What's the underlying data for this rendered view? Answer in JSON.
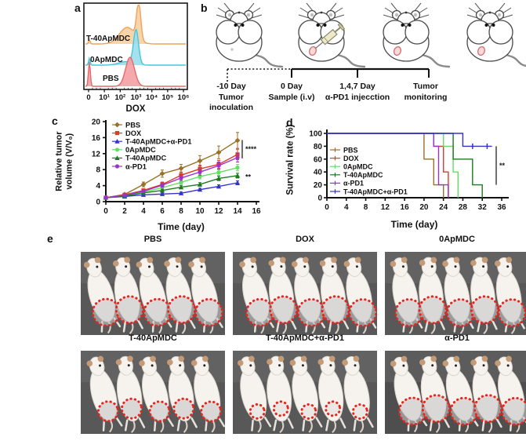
{
  "panel_a": {
    "label": "a"
  },
  "panel_b": {
    "label": "b",
    "mice": [
      {
        "mark": "dot",
        "syringe": false
      },
      {
        "mark": "tumor",
        "syringe": true
      },
      {
        "mark": "tumor",
        "syringe": false
      },
      {
        "mark": "tumor",
        "syringe": false
      }
    ],
    "timeline": [
      {
        "lines": [
          "-10 Day",
          "Tumor",
          "inoculation"
        ]
      },
      {
        "lines": [
          "0 Day",
          "Sample (i.v)"
        ]
      },
      {
        "lines": [
          "1,4,7 Day",
          "α-PD1 injecction"
        ]
      },
      {
        "lines": [
          "Tumor",
          "monitoring"
        ]
      }
    ]
  },
  "panel_c": {
    "label": "c"
  },
  "panel_d": {
    "label": "d"
  },
  "panel_e": {
    "label": "e",
    "groups": [
      {
        "name": "PBS",
        "tumor": "large"
      },
      {
        "name": "DOX",
        "tumor": "large"
      },
      {
        "name": "0ApMDC",
        "tumor": "large"
      },
      {
        "name": "T-40ApMDC",
        "tumor": "medium"
      },
      {
        "name": "T-40ApMDC+α-PD1",
        "tumor": "small"
      },
      {
        "name": "α-PD1",
        "tumor": "large"
      }
    ]
  },
  "chart_data": [
    {
      "id": "flow-histogram",
      "type": "area",
      "title": "",
      "xlabel": "DOX",
      "xticks": [
        "0",
        "10¹",
        "10²",
        "10³",
        "10⁴",
        "10⁵",
        "10⁶"
      ],
      "layout": "ridgeline, offset overlaid histograms, full box frame",
      "series": [
        {
          "name": "T-40ApMDC",
          "stroke": "#efa25a",
          "fill": "#f7cfa2",
          "peaks": [
            {
              "mu": 3.17,
              "sigma": 0.13,
              "amp": 1.0
            },
            {
              "mu": 2.45,
              "sigma": 0.5,
              "amp": 0.45
            },
            {
              "mu": 0.05,
              "sigma": 0.05,
              "amp": 0.12
            }
          ]
        },
        {
          "name": "0ApMDC",
          "stroke": "#46c5dc",
          "fill": "#9adeeb",
          "peaks": [
            {
              "mu": 3.0,
              "sigma": 0.16,
              "amp": 1.0
            },
            {
              "mu": 2.35,
              "sigma": 0.45,
              "amp": 0.1
            },
            {
              "mu": 0.05,
              "sigma": 0.05,
              "amp": 0.2
            }
          ]
        },
        {
          "name": "PBS",
          "stroke": "#e56a6a",
          "fill": "#f4a0a4",
          "peaks": [
            {
              "mu": 2.62,
              "sigma": 0.28,
              "amp": 1.0
            },
            {
              "mu": 0.05,
              "sigma": 0.06,
              "amp": 0.85
            }
          ]
        }
      ]
    },
    {
      "id": "tumor-volume",
      "type": "line",
      "title": "",
      "xlabel": "Time (day)",
      "ylabel": "Relative tumor volume (V/V₀)",
      "x": [
        0,
        2,
        4,
        6,
        8,
        10,
        12,
        14
      ],
      "xticks": [
        0,
        2,
        4,
        6,
        8,
        10,
        12,
        14,
        16
      ],
      "yticks": [
        0,
        4,
        8,
        12,
        16,
        20
      ],
      "xlim": [
        0,
        16
      ],
      "ylim": [
        0,
        20
      ],
      "legend_position": "top-left inside",
      "series": [
        {
          "name": "PBS",
          "color": "#9a7227",
          "marker": "diamond",
          "values": [
            1,
            1.8,
            4.3,
            7.0,
            8.3,
            10.2,
            12.3,
            15.3
          ],
          "err": [
            0.2,
            0.3,
            0.6,
            0.9,
            1.0,
            1.3,
            1.6,
            2.0
          ]
        },
        {
          "name": "DOX",
          "color": "#e0392e",
          "marker": "square",
          "values": [
            1,
            1.7,
            2.8,
            4.3,
            6.6,
            8.2,
            9.3,
            11.8
          ],
          "err": [
            0.2,
            0.3,
            0.4,
            0.6,
            0.8,
            0.9,
            1.0,
            1.3
          ]
        },
        {
          "name": "T-40ApMDC+α-PD1",
          "color": "#3333cb",
          "marker": "triangle",
          "values": [
            1,
            1.3,
            1.7,
            1.9,
            2.1,
            3.0,
            3.8,
            4.7
          ],
          "err": [
            0.1,
            0.15,
            0.2,
            0.25,
            0.3,
            0.35,
            0.4,
            0.5
          ]
        },
        {
          "name": "0ApMDC",
          "color": "#61e061",
          "marker": "circle",
          "values": [
            1,
            1.5,
            2.4,
            3.5,
            4.8,
            6.3,
            7.3,
            8.5
          ],
          "err": [
            0.15,
            0.2,
            0.3,
            0.4,
            0.5,
            0.6,
            0.7,
            0.8
          ]
        },
        {
          "name": "T-40ApMDC",
          "color": "#1f7a1f",
          "marker": "triangle",
          "values": [
            1,
            1.4,
            2.2,
            2.8,
            3.6,
            4.3,
            5.8,
            6.5
          ],
          "err": [
            0.12,
            0.18,
            0.25,
            0.3,
            0.4,
            0.45,
            0.55,
            0.6
          ]
        },
        {
          "name": "α-PD1",
          "color": "#9933cc",
          "marker": "circle",
          "values": [
            1,
            1.6,
            2.6,
            4.1,
            5.9,
            7.4,
            9.0,
            11.0
          ],
          "err": [
            0.15,
            0.25,
            0.35,
            0.5,
            0.6,
            0.8,
            0.9,
            1.1
          ]
        }
      ],
      "annotations": [
        {
          "text": "****",
          "y_top": 15.4,
          "y_bottom": 10.8
        },
        {
          "text": "**",
          "y": 6.2
        }
      ]
    },
    {
      "id": "survival",
      "type": "step",
      "title": "",
      "xlabel": "Time (day)",
      "ylabel": "Survival rate (%)",
      "xticks": [
        0,
        4,
        8,
        12,
        16,
        20,
        24,
        28,
        32,
        36
      ],
      "yticks": [
        0,
        20,
        40,
        60,
        80,
        100
      ],
      "xlim": [
        0,
        37
      ],
      "ylim": [
        0,
        100
      ],
      "legend_position": "lower-left inside",
      "series": [
        {
          "name": "PBS",
          "color": "#9a7227",
          "steps": [
            [
              0,
              100
            ],
            [
              20,
              100
            ],
            [
              20,
              60
            ],
            [
              22,
              60
            ],
            [
              22,
              20
            ],
            [
              24,
              20
            ],
            [
              24,
              0
            ]
          ]
        },
        {
          "name": "DOX",
          "color": "#e0392e",
          "steps": [
            [
              0,
              100
            ],
            [
              22,
              100
            ],
            [
              22,
              80
            ],
            [
              24,
              80
            ],
            [
              24,
              40
            ],
            [
              25,
              40
            ],
            [
              25,
              0
            ]
          ]
        },
        {
          "name": "0ApMDC",
          "color": "#61e061",
          "steps": [
            [
              0,
              100
            ],
            [
              24,
              100
            ],
            [
              24,
              80
            ],
            [
              26,
              80
            ],
            [
              26,
              40
            ],
            [
              27,
              40
            ],
            [
              27,
              0
            ]
          ]
        },
        {
          "name": "T-40ApMDC",
          "color": "#1f7a1f",
          "steps": [
            [
              0,
              100
            ],
            [
              26,
              100
            ],
            [
              26,
              60
            ],
            [
              30,
              60
            ],
            [
              30,
              20
            ],
            [
              32,
              20
            ],
            [
              32,
              0
            ]
          ]
        },
        {
          "name": "α-PD1",
          "color": "#9933cc",
          "steps": [
            [
              0,
              100
            ],
            [
              22,
              100
            ],
            [
              22,
              80
            ],
            [
              23,
              80
            ],
            [
              23,
              20
            ],
            [
              25,
              20
            ],
            [
              25,
              0
            ]
          ]
        },
        {
          "name": "T-40ApMDC+α-PD1",
          "color": "#3333cb",
          "steps": [
            [
              0,
              100
            ],
            [
              28,
              100
            ],
            [
              28,
              80
            ],
            [
              34,
              80
            ]
          ],
          "censor_x": [
            30,
            33
          ]
        }
      ],
      "annotations": [
        {
          "text": "**",
          "y_top": 80,
          "y_bottom": 20
        }
      ]
    }
  ]
}
